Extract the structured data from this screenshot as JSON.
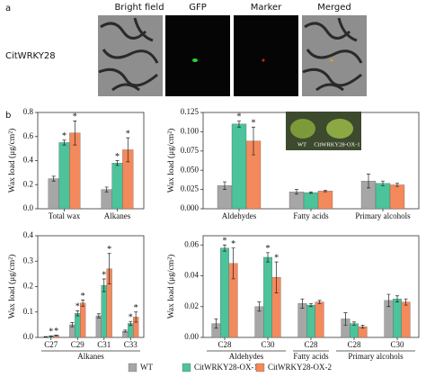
{
  "panel_a": {
    "label": "a",
    "row_label": "CitWRKY28",
    "columns": [
      "Bright field",
      "GFP",
      "Marker",
      "Merged"
    ]
  },
  "panel_b": {
    "label": "b",
    "inset_labels": [
      "WT",
      "CitWRKY28-OX-1"
    ]
  },
  "legend": [
    {
      "name": "WT",
      "color": "#a6a6a6"
    },
    {
      "name": "CitWRKY28-OX-1",
      "color": "#4cc39a"
    },
    {
      "name": "CitWRKY28-OX-2",
      "color": "#f4895c"
    }
  ],
  "chart_data": [
    {
      "type": "bar",
      "y_label": "Wax load (μg/cm²)",
      "categories": [
        "Total wax",
        "Alkanes"
      ],
      "ylim": [
        0,
        0.8
      ],
      "yticks": [
        {
          "value": 0,
          "label": "0.0"
        },
        0.2,
        0.4,
        0.6,
        0.8
      ],
      "series": [
        {
          "values": [
            0.25,
            0.16
          ],
          "errors": [
            0.02,
            0.02
          ]
        },
        {
          "values": [
            0.55,
            0.38
          ],
          "errors": [
            0.02,
            0.02
          ],
          "annotations": [
            "*",
            "*"
          ]
        },
        {
          "values": [
            0.63,
            0.49
          ],
          "errors": [
            0.1,
            0.1
          ],
          "annotations": [
            "*",
            "*"
          ]
        }
      ]
    },
    {
      "type": "bar",
      "y_label": "Wax load (μg/cm²)",
      "categories": [
        "Aldehydes",
        "Fatty acids",
        "Primary alcohols"
      ],
      "ylim": [
        0,
        0.125
      ],
      "yticks": [
        {
          "value": 0,
          "label": "0.000"
        },
        0.025,
        {
          "value": 0.05,
          "label": "0.050"
        },
        0.075,
        {
          "value": 0.1,
          "label": "0.100"
        },
        0.125
      ],
      "series": [
        {
          "values": [
            0.03,
            0.022,
            0.036
          ],
          "errors": [
            0.005,
            0.003,
            0.009
          ]
        },
        {
          "values": [
            0.11,
            0.021,
            0.033
          ],
          "errors": [
            0.004,
            0.001,
            0.003
          ],
          "annotations": [
            "*",
            null,
            null
          ]
        },
        {
          "values": [
            0.088,
            0.023,
            0.031
          ],
          "errors": [
            0.018,
            0.001,
            0.002
          ],
          "annotations": [
            "*",
            null,
            null
          ]
        }
      ]
    },
    {
      "type": "bar",
      "y_label": "Wax load (μg/cm²)",
      "groups": [
        {
          "name": "Alkanes",
          "categories": [
            "C27",
            "C29",
            "C31",
            "C33"
          ]
        }
      ],
      "ylim": [
        0,
        0.4
      ],
      "yticks": [
        {
          "value": 0,
          "label": "0.0"
        },
        0.1,
        0.2,
        0.3,
        0.4
      ],
      "series": [
        {
          "values": [
            0.002,
            0.05,
            0.085,
            0.025
          ],
          "errors": [
            0.001,
            0.008,
            0.008,
            0.004
          ]
        },
        {
          "values": [
            0.005,
            0.095,
            0.205,
            0.055
          ],
          "errors": [
            0.001,
            0.01,
            0.025,
            0.008
          ],
          "annotations": [
            "*",
            "*",
            "*",
            "*"
          ]
        },
        {
          "values": [
            0.008,
            0.135,
            0.27,
            0.08
          ],
          "errors": [
            0.001,
            0.012,
            0.06,
            0.02
          ],
          "annotations": [
            "*",
            "*",
            "*",
            "*"
          ]
        }
      ]
    },
    {
      "type": "bar",
      "y_label": "Wax load (μg/cm²)",
      "groups": [
        {
          "name": "Aldehydes",
          "categories": [
            "C28",
            "C30"
          ]
        },
        {
          "name": "Fatty acids",
          "categories": [
            "C28"
          ]
        },
        {
          "name": "Primary alcohols",
          "categories": [
            "C28",
            "C30"
          ]
        }
      ],
      "ylim": [
        0,
        0.066
      ],
      "yticks": [
        {
          "value": 0,
          "label": "0.00"
        },
        0.02,
        0.04,
        0.06
      ],
      "series": [
        {
          "values": [
            0.009,
            0.02,
            0.022,
            0.012,
            0.024
          ],
          "errors": [
            0.003,
            0.003,
            0.003,
            0.004,
            0.004
          ]
        },
        {
          "values": [
            0.058,
            0.052,
            0.021,
            0.009,
            0.025
          ],
          "errors": [
            0.002,
            0.003,
            0.001,
            0.001,
            0.002
          ],
          "annotations": [
            "*",
            "*",
            null,
            null,
            null
          ]
        },
        {
          "values": [
            0.048,
            0.039,
            0.023,
            0.007,
            0.023
          ],
          "errors": [
            0.01,
            0.01,
            0.001,
            0.001,
            0.002
          ],
          "annotations": [
            "*",
            "*",
            null,
            null,
            null
          ]
        }
      ]
    }
  ]
}
